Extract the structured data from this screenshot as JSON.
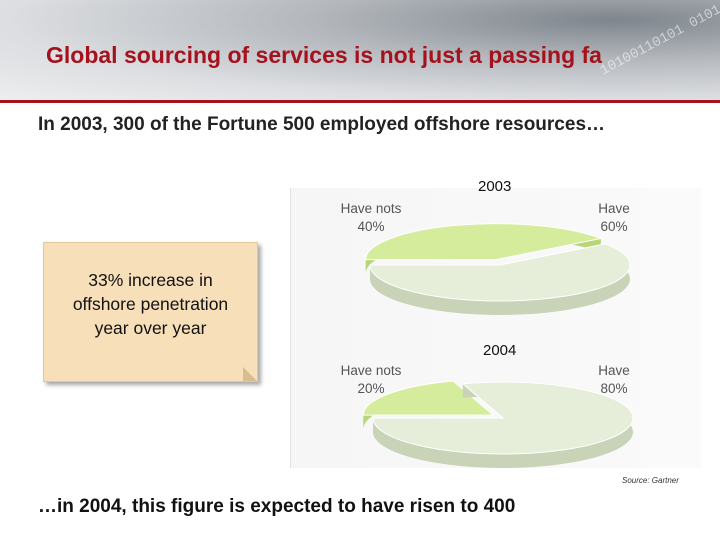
{
  "header": {
    "title": "Global sourcing of services is not just a passing fa",
    "digits": "10100110101 0101"
  },
  "subtitle": "In 2003, 300 of the Fortune 500 employed offshore resources…",
  "note": "33% increase in\noffshore penetration\nyear over year",
  "source": "Source: Gartner",
  "footer": "…in 2004, this figure is expected to have risen to 400",
  "colors": {
    "accent": "#a4121d",
    "have_nots": "#d4ec9c",
    "have": "#e6eed9",
    "note_bg": "#f7dfb9"
  },
  "chart_data": [
    {
      "type": "pie",
      "title": "2003",
      "categories": [
        "Have nots",
        "Have"
      ],
      "values": [
        40,
        60
      ],
      "labels": [
        "Have nots\n40%",
        "Have\n60%"
      ]
    },
    {
      "type": "pie",
      "title": "2004",
      "categories": [
        "Have nots",
        "Have"
      ],
      "values": [
        20,
        80
      ],
      "labels": [
        "Have nots\n20%",
        "Have\n80%"
      ]
    }
  ]
}
